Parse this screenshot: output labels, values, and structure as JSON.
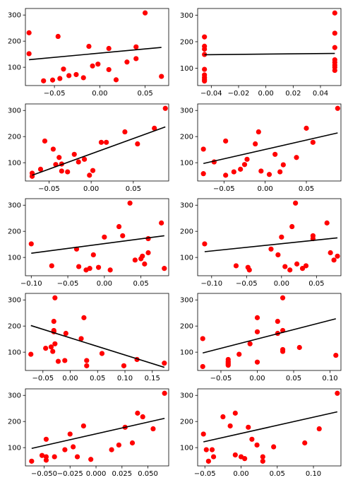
{
  "figure": {
    "background": "#ffffff"
  },
  "style": {
    "point_color": "#ff0000",
    "line_color": "#000000",
    "axes_color": "#000000"
  },
  "chart_data": [
    {
      "type": "scatter",
      "xlim": [
        -0.082,
        0.076
      ],
      "ylim": [
        30,
        325
      ],
      "xticks": [
        -0.05,
        0.0,
        0.05
      ],
      "xtick_labels": [
        "−0.05",
        "0.00",
        "0.05"
      ],
      "yticks": [
        100,
        200,
        300
      ],
      "ytick_labels": [
        "100",
        "200",
        "300"
      ],
      "points": [
        [
          -0.078,
          232
        ],
        [
          -0.078,
          152
        ],
        [
          -0.062,
          48
        ],
        [
          -0.052,
          51
        ],
        [
          -0.046,
          218
        ],
        [
          -0.044,
          57
        ],
        [
          -0.04,
          93
        ],
        [
          -0.034,
          68
        ],
        [
          -0.026,
          72
        ],
        [
          -0.018,
          60
        ],
        [
          -0.012,
          180
        ],
        [
          -0.008,
          105
        ],
        [
          -0.002,
          112
        ],
        [
          0.01,
          172
        ],
        [
          0.01,
          91
        ],
        [
          0.018,
          52
        ],
        [
          0.03,
          120
        ],
        [
          0.04,
          133
        ],
        [
          0.04,
          178
        ],
        [
          0.05,
          308
        ],
        [
          0.068,
          65
        ]
      ],
      "fit_line": [
        [
          -0.078,
          129
        ],
        [
          0.068,
          176
        ]
      ]
    },
    {
      "type": "scatter",
      "xlim": [
        -0.05,
        0.055
      ],
      "ylim": [
        35,
        325
      ],
      "xticks": [
        -0.04,
        -0.02,
        0.0,
        0.02,
        0.04
      ],
      "xtick_labels": [
        "−0.04",
        "−0.02",
        "0.00",
        "0.02",
        "0.04"
      ],
      "yticks": [
        100,
        200,
        300
      ],
      "ytick_labels": [
        "100",
        "200",
        "300"
      ],
      "points": [
        [
          -0.045,
          218
        ],
        [
          -0.045,
          183
        ],
        [
          -0.045,
          172
        ],
        [
          -0.045,
          152
        ],
        [
          -0.045,
          96
        ],
        [
          -0.045,
          75
        ],
        [
          -0.045,
          65
        ],
        [
          -0.045,
          58
        ],
        [
          -0.045,
          52
        ],
        [
          0.0505,
          308
        ],
        [
          0.0505,
          232
        ],
        [
          0.0505,
          178
        ],
        [
          0.0505,
          132
        ],
        [
          0.0505,
          122
        ],
        [
          0.0505,
          112
        ],
        [
          0.0505,
          104
        ],
        [
          0.0505,
          92
        ]
      ],
      "fit_line": [
        [
          -0.045,
          151
        ],
        [
          0.0505,
          156
        ]
      ]
    },
    {
      "type": "scatter",
      "xlim": [
        -0.078,
        0.092
      ],
      "ylim": [
        30,
        325
      ],
      "xticks": [
        -0.05,
        0.0,
        0.05
      ],
      "xtick_labels": [
        "−0.05",
        "0.00",
        "0.05"
      ],
      "yticks": [
        100,
        200,
        300
      ],
      "ytick_labels": [
        "100",
        "200",
        "300"
      ],
      "points": [
        [
          -0.07,
          60
        ],
        [
          -0.07,
          48
        ],
        [
          -0.06,
          75
        ],
        [
          -0.055,
          183
        ],
        [
          -0.045,
          152
        ],
        [
          -0.042,
          93
        ],
        [
          -0.038,
          120
        ],
        [
          -0.035,
          95
        ],
        [
          -0.035,
          68
        ],
        [
          -0.028,
          65
        ],
        [
          -0.02,
          132
        ],
        [
          -0.015,
          103
        ],
        [
          -0.008,
          113
        ],
        [
          -0.002,
          52
        ],
        [
          0.002,
          70
        ],
        [
          0.012,
          178
        ],
        [
          0.018,
          178
        ],
        [
          0.04,
          218
        ],
        [
          0.055,
          172
        ],
        [
          0.075,
          232
        ],
        [
          0.088,
          308
        ]
      ],
      "fit_line": [
        [
          -0.07,
          52
        ],
        [
          0.088,
          237
        ]
      ]
    },
    {
      "type": "scatter",
      "xlim": [
        -0.082,
        0.092
      ],
      "ylim": [
        30,
        325
      ],
      "xticks": [
        -0.05,
        0.0,
        0.05
      ],
      "xtick_labels": [
        "−0.05",
        "0.00",
        "0.05"
      ],
      "yticks": [
        100,
        200,
        300
      ],
      "ytick_labels": [
        "100",
        "200",
        "300"
      ],
      "points": [
        [
          -0.075,
          152
        ],
        [
          -0.075,
          58
        ],
        [
          -0.062,
          103
        ],
        [
          -0.048,
          183
        ],
        [
          -0.048,
          52
        ],
        [
          -0.038,
          65
        ],
        [
          -0.03,
          75
        ],
        [
          -0.025,
          93
        ],
        [
          -0.022,
          113
        ],
        [
          -0.012,
          172
        ],
        [
          -0.008,
          218
        ],
        [
          -0.005,
          68
        ],
        [
          0.005,
          55
        ],
        [
          0.012,
          132
        ],
        [
          0.018,
          65
        ],
        [
          0.022,
          92
        ],
        [
          0.038,
          120
        ],
        [
          0.05,
          232
        ],
        [
          0.058,
          178
        ],
        [
          0.088,
          308
        ]
      ],
      "fit_line": [
        [
          -0.075,
          97
        ],
        [
          0.088,
          214
        ]
      ]
    },
    {
      "type": "scatter",
      "xlim": [
        -0.108,
        0.088
      ],
      "ylim": [
        30,
        325
      ],
      "xticks": [
        -0.1,
        -0.05,
        0.0,
        0.05
      ],
      "xtick_labels": [
        "−0.10",
        "−0.05",
        "0.00",
        "0.05"
      ],
      "yticks": [
        100,
        200,
        300
      ],
      "ytick_labels": [
        "100",
        "200",
        "300"
      ],
      "points": [
        [
          -0.1,
          152
        ],
        [
          -0.072,
          68
        ],
        [
          -0.038,
          132
        ],
        [
          -0.035,
          65
        ],
        [
          -0.025,
          52
        ],
        [
          -0.02,
          58
        ],
        [
          -0.015,
          110
        ],
        [
          -0.008,
          62
        ],
        [
          0.0,
          178
        ],
        [
          0.008,
          52
        ],
        [
          0.02,
          218
        ],
        [
          0.025,
          183
        ],
        [
          0.035,
          308
        ],
        [
          0.042,
          90
        ],
        [
          0.05,
          95
        ],
        [
          0.052,
          105
        ],
        [
          0.055,
          75
        ],
        [
          0.06,
          118
        ],
        [
          0.06,
          172
        ],
        [
          0.078,
          232
        ],
        [
          0.082,
          58
        ]
      ],
      "fit_line": [
        [
          -0.1,
          116
        ],
        [
          0.082,
          183
        ]
      ]
    },
    {
      "type": "scatter",
      "xlim": [
        -0.12,
        0.085
      ],
      "ylim": [
        30,
        325
      ],
      "xticks": [
        -0.1,
        -0.05,
        0.0,
        0.05
      ],
      "xtick_labels": [
        "−0.10",
        "−0.05",
        "0.00",
        "0.05"
      ],
      "yticks": [
        100,
        200,
        300
      ],
      "ytick_labels": [
        "100",
        "200",
        "300"
      ],
      "points": [
        [
          -0.11,
          152
        ],
        [
          -0.065,
          68
        ],
        [
          -0.048,
          62
        ],
        [
          -0.046,
          52
        ],
        [
          -0.015,
          132
        ],
        [
          -0.005,
          110
        ],
        [
          0.0,
          178
        ],
        [
          0.005,
          65
        ],
        [
          0.012,
          52
        ],
        [
          0.015,
          218
        ],
        [
          0.02,
          308
        ],
        [
          0.022,
          75
        ],
        [
          0.03,
          58
        ],
        [
          0.035,
          68
        ],
        [
          0.045,
          172
        ],
        [
          0.045,
          183
        ],
        [
          0.065,
          232
        ],
        [
          0.07,
          118
        ],
        [
          0.075,
          90
        ],
        [
          0.08,
          105
        ]
      ],
      "fit_line": [
        [
          -0.11,
          122
        ],
        [
          0.08,
          175
        ]
      ]
    },
    {
      "type": "scatter",
      "xlim": [
        -0.082,
        0.18
      ],
      "ylim": [
        30,
        325
      ],
      "xticks": [
        -0.05,
        0.0,
        0.05,
        0.1,
        0.15
      ],
      "xtick_labels": [
        "−0.05",
        "0.00",
        "0.05",
        "0.10",
        "0.15"
      ],
      "yticks": [
        100,
        200,
        300
      ],
      "ytick_labels": [
        "100",
        "200",
        "300"
      ],
      "points": [
        [
          -0.072,
          92
        ],
        [
          -0.045,
          115
        ],
        [
          -0.035,
          120
        ],
        [
          -0.032,
          103
        ],
        [
          -0.03,
          183
        ],
        [
          -0.03,
          178
        ],
        [
          -0.03,
          218
        ],
        [
          -0.028,
          308
        ],
        [
          -0.028,
          132
        ],
        [
          -0.022,
          65
        ],
        [
          -0.01,
          68
        ],
        [
          -0.008,
          172
        ],
        [
          0.02,
          152
        ],
        [
          0.025,
          232
        ],
        [
          0.03,
          48
        ],
        [
          0.03,
          68
        ],
        [
          0.058,
          95
        ],
        [
          0.098,
          48
        ],
        [
          0.122,
          72
        ],
        [
          0.172,
          58
        ]
      ],
      "fit_line": [
        [
          -0.072,
          202
        ],
        [
          0.172,
          42
        ]
      ]
    },
    {
      "type": "scatter",
      "xlim": [
        -0.082,
        0.115
      ],
      "ylim": [
        30,
        325
      ],
      "xticks": [
        -0.05,
        0.0,
        0.05,
        0.1
      ],
      "xtick_labels": [
        "−0.05",
        "0.00",
        "0.05",
        "0.10"
      ],
      "yticks": [
        100,
        200,
        300
      ],
      "ytick_labels": [
        "100",
        "200",
        "300"
      ],
      "points": [
        [
          -0.075,
          152
        ],
        [
          -0.075,
          45
        ],
        [
          -0.04,
          72
        ],
        [
          -0.04,
          65
        ],
        [
          -0.04,
          60
        ],
        [
          -0.04,
          55
        ],
        [
          -0.04,
          50
        ],
        [
          -0.025,
          92
        ],
        [
          -0.01,
          132
        ],
        [
          0.0,
          232
        ],
        [
          0.0,
          178
        ],
        [
          0.0,
          62
        ],
        [
          0.028,
          172
        ],
        [
          0.028,
          218
        ],
        [
          0.035,
          308
        ],
        [
          0.035,
          183
        ],
        [
          0.035,
          110
        ],
        [
          0.035,
          103
        ],
        [
          0.058,
          118
        ],
        [
          0.108,
          88
        ]
      ],
      "fit_line": [
        [
          -0.075,
          97
        ],
        [
          0.108,
          228
        ]
      ]
    },
    {
      "type": "scatter",
      "xlim": [
        -0.068,
        0.07
      ],
      "ylim": [
        30,
        325
      ],
      "xticks": [
        -0.05,
        -0.025,
        0.0,
        0.025,
        0.05
      ],
      "xtick_labels": [
        "−0.050",
        "−0.025",
        "0.000",
        "0.025",
        "0.050"
      ],
      "yticks": [
        100,
        200,
        300
      ],
      "ytick_labels": [
        "100",
        "200",
        "300"
      ],
      "points": [
        [
          -0.062,
          48
        ],
        [
          -0.052,
          70
        ],
        [
          -0.048,
          65
        ],
        [
          -0.048,
          52
        ],
        [
          -0.048,
          132
        ],
        [
          -0.04,
          65
        ],
        [
          -0.03,
          92
        ],
        [
          -0.025,
          152
        ],
        [
          -0.022,
          103
        ],
        [
          -0.018,
          65
        ],
        [
          -0.012,
          183
        ],
        [
          -0.005,
          55
        ],
        [
          0.015,
          92
        ],
        [
          0.022,
          110
        ],
        [
          0.028,
          178
        ],
        [
          0.035,
          118
        ],
        [
          0.04,
          232
        ],
        [
          0.045,
          218
        ],
        [
          0.055,
          172
        ],
        [
          0.066,
          308
        ]
      ],
      "fit_line": [
        [
          -0.062,
          97
        ],
        [
          0.066,
          212
        ]
      ]
    },
    {
      "type": "scatter",
      "xlim": [
        -0.06,
        0.138
      ],
      "ylim": [
        30,
        325
      ],
      "xticks": [
        -0.05,
        0.0,
        0.05,
        0.1
      ],
      "xtick_labels": [
        "−0.05",
        "0.00",
        "0.05",
        "0.10"
      ],
      "yticks": [
        100,
        200,
        300
      ],
      "ytick_labels": [
        "100",
        "200",
        "300"
      ],
      "points": [
        [
          -0.052,
          152
        ],
        [
          -0.048,
          92
        ],
        [
          -0.045,
          48
        ],
        [
          -0.04,
          92
        ],
        [
          -0.038,
          65
        ],
        [
          -0.025,
          218
        ],
        [
          -0.015,
          183
        ],
        [
          -0.008,
          232
        ],
        [
          -0.008,
          72
        ],
        [
          0.0,
          65
        ],
        [
          0.005,
          58
        ],
        [
          0.01,
          178
        ],
        [
          0.015,
          132
        ],
        [
          0.022,
          110
        ],
        [
          0.03,
          65
        ],
        [
          0.03,
          48
        ],
        [
          0.045,
          103
        ],
        [
          0.088,
          118
        ],
        [
          0.108,
          172
        ],
        [
          0.133,
          308
        ]
      ],
      "fit_line": [
        [
          -0.052,
          122
        ],
        [
          0.133,
          237
        ]
      ]
    }
  ]
}
